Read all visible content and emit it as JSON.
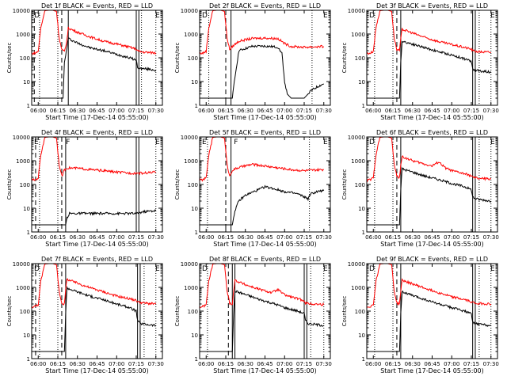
{
  "colors": {
    "background": "#ffffff",
    "axes": "#000000",
    "events": "#000000",
    "lld": "#ff0000"
  },
  "shared": {
    "xlabel": "Start Time (17-Dec-14 05:55:00)",
    "ylabel": "Counts/sec",
    "x_ticks": [
      "06:00",
      "06:15",
      "06:30",
      "06:45",
      "07:00",
      "07:15",
      "07:30"
    ],
    "y_ticks": [
      "1",
      "10",
      "100",
      "1000",
      "10000"
    ],
    "xlim": [
      "05:55",
      "07:35"
    ],
    "ylim": [
      1,
      10000
    ],
    "yscale": "log",
    "grid": false,
    "legend": "none"
  },
  "chart_data": [
    {
      "type": "line",
      "title": "Det 1f BLACK = Events, RED = LLD",
      "corner_labels": [
        "D",
        "E"
      ],
      "series": [
        {
          "color": "#000000",
          "x": [
            "05:55",
            "06:00",
            "06:02",
            "06:05",
            "06:10",
            "06:14",
            "06:17",
            "06:19",
            "06:20",
            "06:21",
            "06:22",
            "06:23",
            "06:30",
            "06:40",
            "06:50",
            "07:00",
            "07:10",
            "07:15",
            "07:16",
            "07:18",
            "07:20",
            "07:25",
            "07:30"
          ],
          "y": [
            2,
            2,
            2,
            2,
            2,
            2,
            2,
            2,
            60,
            120,
            300,
            650,
            420,
            260,
            200,
            140,
            100,
            80,
            40,
            35,
            35,
            33,
            30
          ]
        },
        {
          "color": "#ff0000",
          "x": [
            "05:55",
            "05:58",
            "06:00",
            "06:02",
            "06:05",
            "06:08",
            "06:11",
            "06:14",
            "06:16",
            "06:18",
            "06:20",
            "06:21",
            "06:22",
            "06:23",
            "06:30",
            "06:40",
            "06:50",
            "07:00",
            "07:10",
            "07:15",
            "07:16",
            "07:18",
            "07:22",
            "07:30"
          ],
          "y": [
            150,
            160,
            190,
            1800,
            9500,
            10000,
            10000,
            9000,
            700,
            220,
            180,
            300,
            600,
            1800,
            1200,
            750,
            500,
            380,
            280,
            230,
            200,
            180,
            170,
            160
          ]
        }
      ],
      "solid_lines": [
        "06:23",
        "07:15",
        "07:17"
      ],
      "dashed_lines": [
        "05:57",
        "06:18"
      ],
      "dotted_lines": [
        "06:01",
        "06:15",
        "07:19",
        "07:30"
      ]
    },
    {
      "type": "line",
      "title": "Det 2f BLACK = Events, RED = LLD",
      "corner_labels": [
        "D",
        "E"
      ],
      "series": [
        {
          "color": "#000000",
          "x": [
            "05:55",
            "06:18",
            "06:19",
            "06:20",
            "06:22",
            "06:25",
            "06:35",
            "06:45",
            "06:55",
            "06:58",
            "07:00",
            "07:02",
            "07:05",
            "07:10",
            "07:15",
            "07:20",
            "07:25",
            "07:30"
          ],
          "y": [
            2,
            2,
            2,
            2,
            15,
            200,
            300,
            310,
            280,
            150,
            10,
            3,
            2,
            2,
            2,
            4,
            6,
            8
          ]
        },
        {
          "color": "#ff0000",
          "x": [
            "05:55",
            "05:58",
            "06:00",
            "06:02",
            "06:05",
            "06:08",
            "06:11",
            "06:14",
            "06:16",
            "06:18",
            "06:20",
            "06:25",
            "06:35",
            "06:45",
            "06:55",
            "07:00",
            "07:05",
            "07:15",
            "07:30"
          ],
          "y": [
            150,
            160,
            190,
            1800,
            9500,
            10000,
            10000,
            9000,
            700,
            220,
            300,
            500,
            650,
            680,
            640,
            400,
            300,
            280,
            300
          ]
        }
      ],
      "solid_lines": [
        "06:19"
      ],
      "dashed_lines": [
        "06:15"
      ],
      "dotted_lines": [
        "06:02",
        "07:21"
      ]
    },
    {
      "type": "line",
      "title": "Det 3f BLACK = Events, RED = LLD",
      "corner_labels": [
        "D",
        "E"
      ],
      "series": [
        {
          "color": "#000000",
          "x": [
            "05:55",
            "06:00",
            "06:14",
            "06:17",
            "06:19",
            "06:20",
            "06:21",
            "06:22",
            "06:30",
            "06:40",
            "06:50",
            "07:00",
            "07:10",
            "07:15",
            "07:16",
            "07:18",
            "07:22",
            "07:30"
          ],
          "y": [
            2,
            2,
            2,
            2,
            2,
            2,
            60,
            500,
            380,
            260,
            180,
            130,
            90,
            70,
            35,
            30,
            28,
            25
          ]
        },
        {
          "color": "#ff0000",
          "x": [
            "05:55",
            "05:58",
            "06:00",
            "06:02",
            "06:05",
            "06:08",
            "06:11",
            "06:14",
            "06:16",
            "06:18",
            "06:20",
            "06:21",
            "06:22",
            "06:30",
            "06:40",
            "06:50",
            "07:00",
            "07:10",
            "07:15",
            "07:16",
            "07:20",
            "07:30"
          ],
          "y": [
            150,
            160,
            190,
            1800,
            9500,
            10000,
            10000,
            9000,
            700,
            220,
            200,
            600,
            1600,
            1100,
            700,
            480,
            360,
            270,
            230,
            200,
            180,
            170
          ]
        }
      ],
      "solid_lines": [
        "06:21",
        "07:16",
        "07:18"
      ],
      "dashed_lines": [
        "06:18"
      ],
      "dotted_lines": [
        "06:01",
        "06:15",
        "07:21",
        "07:30"
      ]
    },
    {
      "type": "line",
      "title": "Det 4f BLACK = Events, RED = LLD",
      "corner_labels": [
        "E",
        "F",
        "E"
      ],
      "series": [
        {
          "color": "#000000",
          "x": [
            "05:55",
            "06:18",
            "06:21",
            "06:22",
            "06:24",
            "06:30",
            "06:40",
            "06:50",
            "07:00",
            "07:10",
            "07:15",
            "07:20",
            "07:30"
          ],
          "y": [
            2,
            2,
            2,
            4,
            6,
            6,
            6,
            6,
            6,
            6,
            6,
            7,
            8
          ]
        },
        {
          "color": "#ff0000",
          "x": [
            "05:55",
            "05:58",
            "06:00",
            "06:02",
            "06:05",
            "06:08",
            "06:11",
            "06:14",
            "06:16",
            "06:18",
            "06:20",
            "06:22",
            "06:30",
            "06:40",
            "06:50",
            "07:00",
            "07:10",
            "07:20",
            "07:30"
          ],
          "y": [
            150,
            160,
            190,
            1800,
            9500,
            10000,
            10000,
            9000,
            700,
            220,
            400,
            500,
            480,
            420,
            380,
            330,
            300,
            300,
            330
          ]
        }
      ],
      "solid_lines": [
        "06:21",
        "07:15",
        "07:17"
      ],
      "dashed_lines": [
        "05:58",
        "06:18"
      ],
      "dotted_lines": [
        "06:01",
        "06:15",
        "07:30"
      ]
    },
    {
      "type": "line",
      "title": "Det 5f BLACK = Events, RED = LLD",
      "corner_labels": [
        "E",
        "F",
        "E"
      ],
      "series": [
        {
          "color": "#000000",
          "x": [
            "05:55",
            "06:17",
            "06:18",
            "06:19",
            "06:20",
            "06:22",
            "06:25",
            "06:30",
            "06:40",
            "06:45",
            "06:50",
            "07:00",
            "07:10",
            "07:15",
            "07:18",
            "07:20",
            "07:25",
            "07:30"
          ],
          "y": [
            2,
            2,
            2,
            2,
            2,
            8,
            20,
            35,
            60,
            80,
            70,
            50,
            40,
            30,
            25,
            40,
            50,
            55
          ]
        },
        {
          "color": "#ff0000",
          "x": [
            "05:55",
            "05:58",
            "06:00",
            "06:02",
            "06:05",
            "06:08",
            "06:11",
            "06:14",
            "06:16",
            "06:18",
            "06:20",
            "06:25",
            "06:35",
            "06:45",
            "06:55",
            "07:05",
            "07:15",
            "07:30"
          ],
          "y": [
            150,
            160,
            190,
            1800,
            9500,
            10000,
            10000,
            9000,
            700,
            220,
            400,
            520,
            700,
            600,
            500,
            420,
            380,
            420
          ]
        }
      ],
      "solid_lines": [
        "06:19"
      ],
      "dashed_lines": [
        "06:15"
      ],
      "dotted_lines": [
        "06:01",
        "07:19"
      ]
    },
    {
      "type": "line",
      "title": "Det 6f BLACK = Events, RED = LLD",
      "corner_labels": [
        "D",
        "E"
      ],
      "series": [
        {
          "color": "#000000",
          "x": [
            "05:55",
            "06:14",
            "06:17",
            "06:19",
            "06:20",
            "06:21",
            "06:22",
            "06:30",
            "06:40",
            "06:50",
            "07:00",
            "07:10",
            "07:15",
            "07:16",
            "07:18",
            "07:22",
            "07:30"
          ],
          "y": [
            2,
            2,
            2,
            2,
            2,
            60,
            450,
            330,
            220,
            160,
            110,
            80,
            60,
            30,
            25,
            23,
            20
          ]
        },
        {
          "color": "#ff0000",
          "x": [
            "05:55",
            "05:58",
            "06:00",
            "06:02",
            "06:05",
            "06:08",
            "06:11",
            "06:14",
            "06:16",
            "06:18",
            "06:20",
            "06:21",
            "06:22",
            "06:30",
            "06:40",
            "06:45",
            "06:50",
            "06:55",
            "07:00",
            "07:10",
            "07:15",
            "07:16",
            "07:20",
            "07:30"
          ],
          "y": [
            150,
            160,
            190,
            1800,
            9500,
            10000,
            10000,
            9000,
            700,
            220,
            200,
            600,
            1500,
            1000,
            700,
            600,
            900,
            500,
            380,
            280,
            230,
            200,
            180,
            170
          ]
        }
      ],
      "solid_lines": [
        "06:21",
        "07:16",
        "07:18"
      ],
      "dashed_lines": [
        "06:18"
      ],
      "dotted_lines": [
        "06:01",
        "06:15",
        "07:21",
        "07:30"
      ]
    },
    {
      "type": "line",
      "title": "Det 7f BLACK = Events, RED = LLD",
      "corner_labels": [
        "D",
        "E"
      ],
      "series": [
        {
          "color": "#000000",
          "x": [
            "05:55",
            "06:14",
            "06:17",
            "06:19",
            "06:20",
            "06:21",
            "06:22",
            "06:30",
            "06:40",
            "06:50",
            "07:00",
            "07:10",
            "07:15",
            "07:16",
            "07:18",
            "07:22",
            "07:30"
          ],
          "y": [
            2,
            2,
            2,
            2,
            2,
            80,
            950,
            650,
            420,
            300,
            200,
            140,
            100,
            40,
            30,
            28,
            25
          ]
        },
        {
          "color": "#ff0000",
          "x": [
            "05:55",
            "05:58",
            "06:00",
            "06:02",
            "06:05",
            "06:08",
            "06:11",
            "06:14",
            "06:16",
            "06:18",
            "06:20",
            "06:21",
            "06:22",
            "06:30",
            "06:40",
            "06:50",
            "07:00",
            "07:10",
            "07:15",
            "07:16",
            "07:20",
            "07:30"
          ],
          "y": [
            150,
            160,
            190,
            1800,
            9500,
            10000,
            10000,
            9000,
            700,
            220,
            200,
            800,
            2200,
            1500,
            950,
            650,
            430,
            330,
            280,
            250,
            220,
            200
          ]
        }
      ],
      "solid_lines": [
        "06:21",
        "07:16",
        "07:18"
      ],
      "dashed_lines": [
        "05:58",
        "06:18"
      ],
      "dotted_lines": [
        "06:01",
        "06:15",
        "07:21",
        "07:30"
      ]
    },
    {
      "type": "line",
      "title": "Det 8f BLACK = Events, RED = LLD",
      "corner_labels": [
        "D",
        "E"
      ],
      "series": [
        {
          "color": "#000000",
          "x": [
            "05:55",
            "06:18",
            "06:19",
            "06:20",
            "06:21",
            "06:22",
            "06:30",
            "06:40",
            "06:50",
            "06:55",
            "07:00",
            "07:10",
            "07:15",
            "07:16",
            "07:18",
            "07:22",
            "07:30"
          ],
          "y": [
            2,
            2,
            2,
            2,
            80,
            700,
            500,
            320,
            220,
            180,
            140,
            100,
            80,
            40,
            30,
            28,
            25
          ]
        },
        {
          "color": "#ff0000",
          "x": [
            "05:55",
            "05:58",
            "06:00",
            "06:02",
            "06:05",
            "06:08",
            "06:11",
            "06:14",
            "06:16",
            "06:18",
            "06:20",
            "06:21",
            "06:22",
            "06:30",
            "06:40",
            "06:50",
            "06:55",
            "07:00",
            "07:10",
            "07:15",
            "07:16",
            "07:20",
            "07:30"
          ],
          "y": [
            150,
            160,
            190,
            1800,
            9500,
            10000,
            10000,
            9000,
            700,
            220,
            200,
            700,
            2000,
            1300,
            850,
            600,
            800,
            480,
            330,
            280,
            220,
            200,
            190
          ]
        }
      ],
      "solid_lines": [
        "06:20",
        "06:22",
        "07:15",
        "07:17"
      ],
      "dashed_lines": [
        "06:17"
      ],
      "dotted_lines": [
        "06:01",
        "07:20",
        "07:30"
      ]
    },
    {
      "type": "line",
      "title": "Det 9f BLACK = Events, RED = LLD",
      "corner_labels": [
        "D",
        "E"
      ],
      "series": [
        {
          "color": "#000000",
          "x": [
            "05:55",
            "06:14",
            "06:17",
            "06:19",
            "06:20",
            "06:21",
            "06:22",
            "06:30",
            "06:40",
            "06:50",
            "07:00",
            "07:10",
            "07:15",
            "07:16",
            "07:18",
            "07:22",
            "07:30"
          ],
          "y": [
            2,
            2,
            2,
            2,
            2,
            80,
            650,
            450,
            300,
            200,
            140,
            100,
            75,
            35,
            30,
            28,
            25
          ]
        },
        {
          "color": "#ff0000",
          "x": [
            "05:55",
            "05:58",
            "06:00",
            "06:02",
            "06:05",
            "06:08",
            "06:11",
            "06:14",
            "06:16",
            "06:18",
            "06:20",
            "06:21",
            "06:22",
            "06:30",
            "06:40",
            "06:50",
            "07:00",
            "07:10",
            "07:15",
            "07:16",
            "07:20",
            "07:30"
          ],
          "y": [
            150,
            160,
            190,
            1800,
            9500,
            10000,
            10000,
            9000,
            700,
            220,
            200,
            700,
            2000,
            1400,
            900,
            600,
            400,
            300,
            250,
            230,
            210,
            200
          ]
        }
      ],
      "solid_lines": [
        "06:21",
        "07:16",
        "07:18"
      ],
      "dashed_lines": [
        "06:18"
      ],
      "dotted_lines": [
        "06:01",
        "06:15",
        "07:21",
        "07:30"
      ]
    }
  ]
}
